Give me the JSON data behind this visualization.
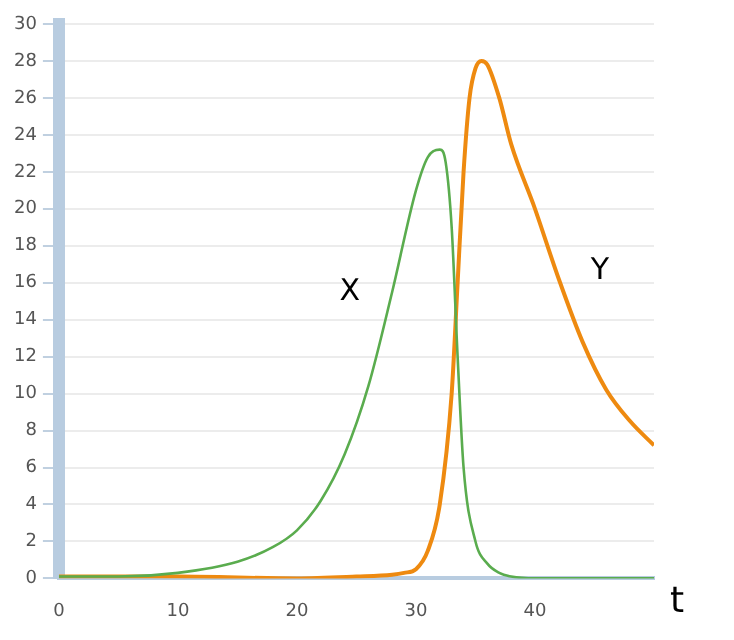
{
  "chart_data": {
    "type": "line",
    "xlabel": "t",
    "xlim": [
      0,
      50
    ],
    "xticks": [
      0,
      10,
      20,
      30,
      40
    ],
    "ylim": [
      0,
      30
    ],
    "yticks": [
      0,
      2,
      4,
      6,
      8,
      10,
      12,
      14,
      16,
      18,
      20,
      22,
      24,
      26,
      28,
      30
    ],
    "grid": "y",
    "legend": false,
    "marker": "none",
    "line_style": "solid",
    "series": [
      {
        "name": "X",
        "color": "#5aac4e",
        "x": [
          0,
          5,
          10,
          15,
          18,
          20,
          22,
          24,
          26,
          28,
          30,
          31,
          32,
          32.5,
          33,
          33.5,
          34,
          35,
          36,
          37,
          38,
          40,
          45,
          50
        ],
        "values": [
          0.1,
          0.1,
          0.3,
          0.9,
          1.7,
          2.6,
          4.2,
          6.7,
          10.4,
          15.5,
          21,
          22.8,
          23.2,
          22.5,
          19,
          12,
          6,
          2,
          0.8,
          0.3,
          0.1,
          0,
          0,
          0
        ]
      },
      {
        "name": "Y",
        "color": "#ee8a10",
        "x": [
          0,
          10,
          20,
          25,
          28,
          29,
          30,
          31,
          32,
          33,
          33.5,
          34,
          34.5,
          35,
          35.5,
          36,
          37,
          38,
          40,
          42,
          44,
          46,
          48,
          50
        ],
        "values": [
          0.1,
          0.1,
          0,
          0.1,
          0.2,
          0.3,
          0.5,
          1.5,
          4,
          10,
          16,
          22,
          26,
          27.6,
          28,
          27.8,
          26,
          23.5,
          20,
          16.2,
          12.8,
          10.2,
          8.5,
          7.2
        ]
      }
    ]
  }
}
